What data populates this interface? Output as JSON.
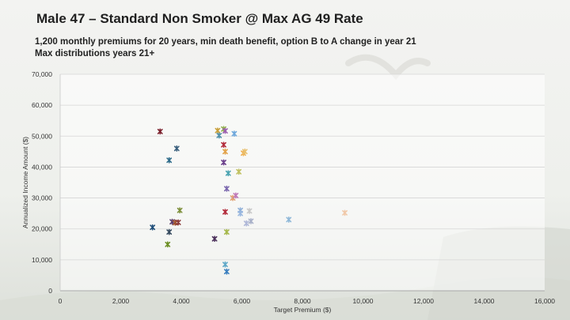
{
  "slide": {
    "title": "Male 47 – Standard Non Smoker @ Max AG 49 Rate",
    "subtitle_line1": "1,200 monthly premiums for 20 years, min death benefit, option B to A change in year 21",
    "subtitle_line2": "Max distributions years 21+"
  },
  "chart_data": {
    "type": "scatter",
    "title": "",
    "xlabel": "Target Premium ($)",
    "ylabel": "Annualized Income Amount ($)",
    "xlim": [
      0,
      16000
    ],
    "ylim": [
      0,
      70000
    ],
    "xticks": [
      0,
      2000,
      4000,
      6000,
      8000,
      10000,
      12000,
      14000,
      16000
    ],
    "yticks": [
      0,
      10000,
      20000,
      30000,
      40000,
      50000,
      60000,
      70000
    ],
    "xtick_labels": [
      "0",
      "2,000",
      "4,000",
      "6,000",
      "8,000",
      "10,000",
      "12,000",
      "14,000",
      "16,000"
    ],
    "ytick_labels": [
      "0",
      "10,000",
      "20,000",
      "30,000",
      "40,000",
      "50,000",
      "60,000",
      "70,000"
    ],
    "grid": "horizontal",
    "points": [
      {
        "x": 3300,
        "y": 51500,
        "color": "#7a1f2b"
      },
      {
        "x": 3600,
        "y": 42200,
        "color": "#2e6b8a"
      },
      {
        "x": 3850,
        "y": 46000,
        "color": "#3a5f7d"
      },
      {
        "x": 3950,
        "y": 26000,
        "color": "#7d8f3a"
      },
      {
        "x": 3700,
        "y": 22300,
        "color": "#5b3d6b"
      },
      {
        "x": 3800,
        "y": 22000,
        "color": "#a0522d"
      },
      {
        "x": 3900,
        "y": 22100,
        "color": "#8b3a3a"
      },
      {
        "x": 3050,
        "y": 20500,
        "color": "#1f4e79"
      },
      {
        "x": 3600,
        "y": 19000,
        "color": "#34495e"
      },
      {
        "x": 3550,
        "y": 15000,
        "color": "#6b8e23"
      },
      {
        "x": 5100,
        "y": 16800,
        "color": "#4a2f5a"
      },
      {
        "x": 5200,
        "y": 51800,
        "color": "#c8a03a"
      },
      {
        "x": 5250,
        "y": 50200,
        "color": "#4f8fa8"
      },
      {
        "x": 5400,
        "y": 52300,
        "color": "#8fb04a"
      },
      {
        "x": 5450,
        "y": 51700,
        "color": "#9c5fb0"
      },
      {
        "x": 5400,
        "y": 47200,
        "color": "#b22a3a"
      },
      {
        "x": 5450,
        "y": 45000,
        "color": "#e2a24a"
      },
      {
        "x": 5400,
        "y": 41500,
        "color": "#6a3d8a"
      },
      {
        "x": 5550,
        "y": 38000,
        "color": "#4aa3b0"
      },
      {
        "x": 5500,
        "y": 33000,
        "color": "#7b68ae"
      },
      {
        "x": 5450,
        "y": 25500,
        "color": "#b22a3a"
      },
      {
        "x": 5500,
        "y": 19000,
        "color": "#a5b84a"
      },
      {
        "x": 5450,
        "y": 8500,
        "color": "#5fa8c8"
      },
      {
        "x": 5500,
        "y": 6200,
        "color": "#3a7fbf"
      },
      {
        "x": 5750,
        "y": 50800,
        "color": "#6fa8dc"
      },
      {
        "x": 5700,
        "y": 30000,
        "color": "#e0a070"
      },
      {
        "x": 5800,
        "y": 30800,
        "color": "#c07ab8"
      },
      {
        "x": 5900,
        "y": 38500,
        "color": "#c0c060"
      },
      {
        "x": 5950,
        "y": 26000,
        "color": "#8fb0d8"
      },
      {
        "x": 5950,
        "y": 25000,
        "color": "#9ab8e0"
      },
      {
        "x": 6050,
        "y": 44500,
        "color": "#f0b050"
      },
      {
        "x": 6100,
        "y": 45000,
        "color": "#e8c070"
      },
      {
        "x": 6150,
        "y": 21800,
        "color": "#b0b8d8"
      },
      {
        "x": 6250,
        "y": 25800,
        "color": "#c8c8c8"
      },
      {
        "x": 6300,
        "y": 22500,
        "color": "#a8b0c8"
      },
      {
        "x": 7550,
        "y": 23000,
        "color": "#8fb8d8"
      },
      {
        "x": 9400,
        "y": 25200,
        "color": "#f0c8a8"
      }
    ]
  }
}
